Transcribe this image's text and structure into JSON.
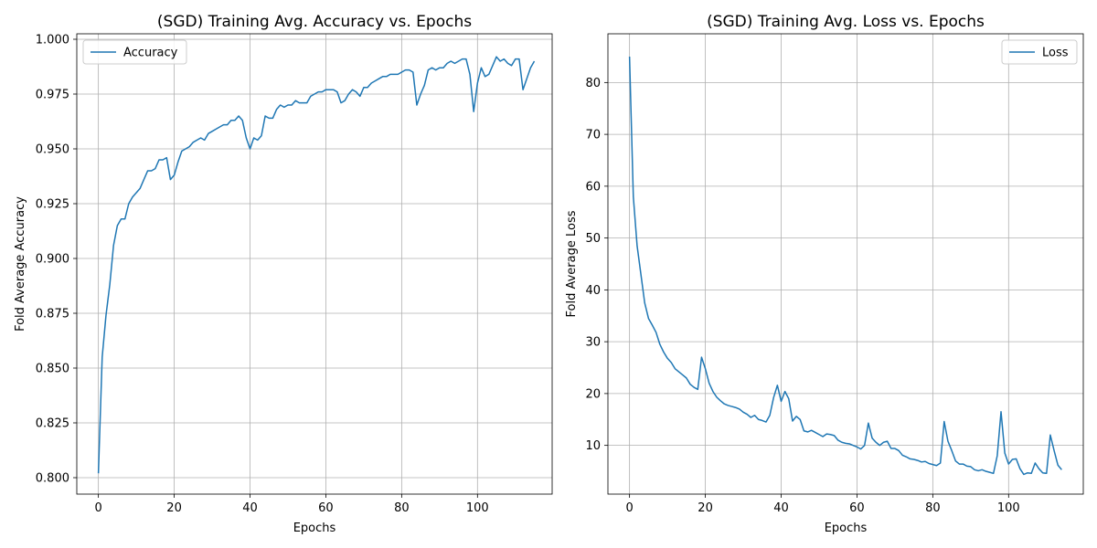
{
  "chart_data": [
    {
      "type": "line",
      "title": "(SGD) Training Avg. Accuracy vs. Epochs",
      "xlabel": "Epochs",
      "ylabel": "Fold Average Accuracy",
      "xlim": [
        -5.7,
        119.7
      ],
      "ylim": [
        0.7925,
        1.0025
      ],
      "xticks": [
        0,
        20,
        40,
        60,
        80,
        100
      ],
      "xtick_labels": [
        "0",
        "20",
        "40",
        "60",
        "80",
        "100"
      ],
      "yticks": [
        0.8,
        0.825,
        0.85,
        0.875,
        0.9,
        0.925,
        0.95,
        0.975,
        1.0
      ],
      "ytick_labels": [
        "0.800",
        "0.825",
        "0.850",
        "0.875",
        "0.900",
        "0.925",
        "0.950",
        "0.975",
        "1.000"
      ],
      "grid": true,
      "legend": "top-left",
      "color": "#1f77b4",
      "series": [
        {
          "name": "Accuracy",
          "values": [
            0.802,
            0.855,
            0.874,
            0.888,
            0.906,
            0.915,
            0.918,
            0.918,
            0.925,
            0.928,
            0.93,
            0.932,
            0.936,
            0.94,
            0.94,
            0.941,
            0.945,
            0.945,
            0.946,
            0.936,
            0.938,
            0.944,
            0.949,
            0.95,
            0.951,
            0.953,
            0.954,
            0.955,
            0.954,
            0.957,
            0.958,
            0.959,
            0.96,
            0.961,
            0.961,
            0.963,
            0.963,
            0.965,
            0.963,
            0.955,
            0.95,
            0.955,
            0.954,
            0.956,
            0.965,
            0.964,
            0.964,
            0.968,
            0.97,
            0.969,
            0.97,
            0.97,
            0.972,
            0.971,
            0.971,
            0.971,
            0.974,
            0.975,
            0.976,
            0.976,
            0.977,
            0.977,
            0.977,
            0.976,
            0.971,
            0.972,
            0.975,
            0.977,
            0.976,
            0.974,
            0.978,
            0.978,
            0.98,
            0.981,
            0.982,
            0.983,
            0.983,
            0.984,
            0.984,
            0.984,
            0.985,
            0.986,
            0.986,
            0.985,
            0.97,
            0.975,
            0.979,
            0.986,
            0.987,
            0.986,
            0.987,
            0.987,
            0.989,
            0.99,
            0.989,
            0.99,
            0.991,
            0.991,
            0.984,
            0.967,
            0.98,
            0.987,
            0.983,
            0.984,
            0.988,
            0.992,
            0.99,
            0.991,
            0.989,
            0.988,
            0.991,
            0.991,
            0.977,
            0.982,
            0.987,
            0.99
          ]
        }
      ]
    },
    {
      "type": "line",
      "title": "(SGD) Training Avg. Loss vs. Epochs",
      "xlabel": "Epochs",
      "ylabel": "Fold Average Loss",
      "xlim": [
        -5.7,
        119.7
      ],
      "ylim": [
        0.6,
        89.4
      ],
      "xticks": [
        0,
        20,
        40,
        60,
        80,
        100
      ],
      "xtick_labels": [
        "0",
        "20",
        "40",
        "60",
        "80",
        "100"
      ],
      "yticks": [
        10,
        20,
        30,
        40,
        50,
        60,
        70,
        80
      ],
      "ytick_labels": [
        "10",
        "20",
        "30",
        "40",
        "50",
        "60",
        "70",
        "80"
      ],
      "grid": true,
      "legend": "top-right",
      "color": "#1f77b4",
      "series": [
        {
          "name": "Loss",
          "values": [
            85.0,
            58.0,
            48.5,
            43.0,
            37.5,
            34.5,
            33.2,
            31.8,
            29.5,
            28.0,
            26.8,
            26.0,
            24.8,
            24.2,
            23.6,
            23.0,
            21.8,
            21.2,
            20.8,
            27.0,
            24.8,
            22.0,
            20.4,
            19.3,
            18.6,
            18.0,
            17.7,
            17.5,
            17.3,
            17.0,
            16.4,
            16.0,
            15.4,
            15.8,
            15.0,
            14.8,
            14.5,
            15.8,
            19.2,
            21.6,
            18.5,
            20.4,
            19.0,
            14.7,
            15.6,
            15.0,
            12.8,
            12.6,
            12.9,
            12.5,
            12.1,
            11.7,
            12.2,
            12.1,
            11.9,
            11.0,
            10.6,
            10.4,
            10.3,
            10.0,
            9.7,
            9.3,
            10.0,
            14.3,
            11.4,
            10.6,
            10.0,
            10.6,
            10.8,
            9.4,
            9.4,
            9.0,
            8.1,
            7.8,
            7.4,
            7.3,
            7.1,
            6.8,
            6.9,
            6.5,
            6.3,
            6.1,
            6.6,
            14.6,
            10.8,
            9.0,
            7.0,
            6.4,
            6.4,
            6.0,
            5.9,
            5.3,
            5.1,
            5.3,
            5.0,
            4.8,
            4.6,
            8.0,
            16.5,
            8.5,
            6.4,
            7.3,
            7.4,
            5.5,
            4.4,
            4.7,
            4.6,
            6.6,
            5.5,
            4.7,
            4.6,
            12.0,
            9.0,
            6.2,
            5.3
          ]
        }
      ]
    }
  ]
}
